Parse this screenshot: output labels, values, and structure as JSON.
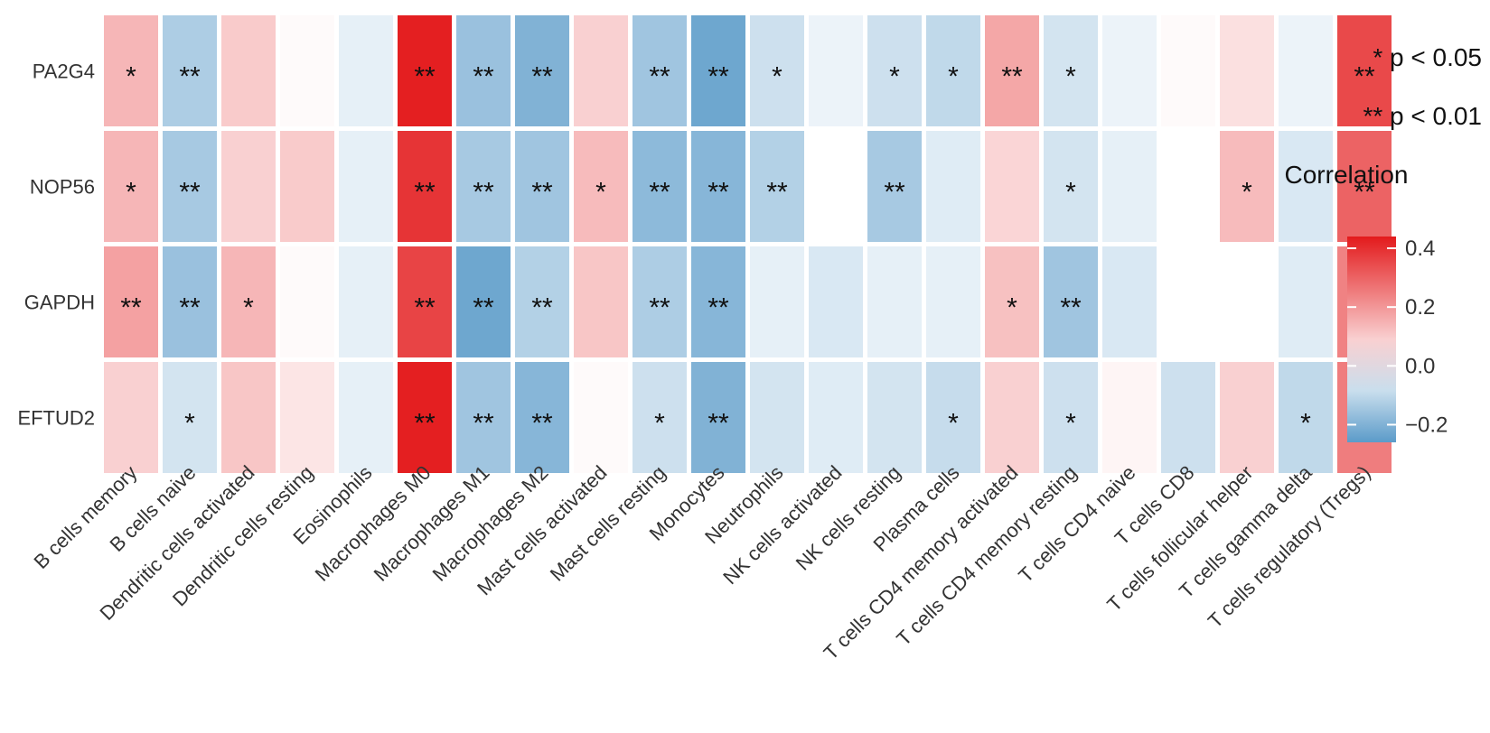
{
  "chart_data": {
    "type": "heatmap",
    "rows": [
      "PA2G4",
      "NOP56",
      "GAPDH",
      "EFTUD2"
    ],
    "columns": [
      "B cells memory",
      "B cells naive",
      "Dendritic cells activated",
      "Dendritic cells resting",
      "Eosinophils",
      "Macrophages M0",
      "Macrophages M1",
      "Macrophages M2",
      "Mast cells activated",
      "Mast cells resting",
      "Monocytes",
      "Neutrophils",
      "NK cells activated",
      "NK cells resting",
      "Plasma cells",
      "T cells CD4 memory activated",
      "T cells CD4 memory resting",
      "T cells CD4 naive",
      "T cells CD8",
      "T cells follicular helper",
      "T cells gamma delta",
      "T cells regulatory (Tregs)"
    ],
    "values": [
      [
        0.14,
        -0.13,
        0.1,
        0.01,
        -0.04,
        0.43,
        -0.16,
        -0.2,
        0.09,
        -0.15,
        -0.23,
        -0.08,
        -0.03,
        -0.08,
        -0.1,
        0.17,
        -0.07,
        -0.03,
        0.01,
        0.06,
        -0.03,
        0.35
      ],
      [
        0.14,
        -0.14,
        0.09,
        0.1,
        -0.04,
        0.39,
        -0.14,
        -0.15,
        0.13,
        -0.18,
        -0.19,
        -0.12,
        0.0,
        -0.14,
        -0.05,
        0.08,
        -0.07,
        -0.04,
        0.0,
        0.13,
        -0.06,
        0.3
      ],
      [
        0.18,
        -0.16,
        0.14,
        0.01,
        -0.04,
        0.36,
        -0.23,
        -0.12,
        0.11,
        -0.13,
        -0.19,
        -0.04,
        -0.06,
        -0.04,
        -0.04,
        0.12,
        -0.15,
        -0.06,
        0.0,
        0.0,
        -0.05,
        0.24
      ],
      [
        0.09,
        -0.07,
        0.11,
        0.05,
        -0.04,
        0.43,
        -0.15,
        -0.19,
        0.01,
        -0.08,
        -0.2,
        -0.07,
        -0.05,
        -0.07,
        -0.09,
        0.09,
        -0.08,
        0.02,
        -0.08,
        0.09,
        -0.1,
        0.25
      ]
    ],
    "significance": [
      [
        "*",
        "**",
        "",
        "",
        "",
        "**",
        "**",
        "**",
        "",
        "**",
        "**",
        "*",
        "",
        "*",
        "*",
        "**",
        "*",
        "",
        "",
        "",
        "",
        "**"
      ],
      [
        "*",
        "**",
        "",
        "",
        "",
        "**",
        "**",
        "**",
        "*",
        "**",
        "**",
        "**",
        "",
        "**",
        "",
        "",
        "*",
        "",
        "",
        "*",
        "",
        "**"
      ],
      [
        "**",
        "**",
        "*",
        "",
        "",
        "**",
        "**",
        "**",
        "",
        "**",
        "**",
        "",
        "",
        "",
        "",
        "*",
        "**",
        "",
        "",
        "",
        "",
        "**"
      ],
      [
        "",
        "*",
        "",
        "",
        "",
        "**",
        "**",
        "**",
        "",
        "*",
        "**",
        "",
        "",
        "",
        "*",
        "",
        "*",
        "",
        "",
        "",
        "*",
        "**"
      ]
    ],
    "significance_legend": [
      "* p < 0.05",
      "** p < 0.01"
    ],
    "color_scale": {
      "title": "Correlation",
      "range": [
        -0.26,
        0.44
      ],
      "ticks": [
        0.4,
        0.2,
        0.0,
        -0.2
      ],
      "tick_labels": [
        "0.4",
        "0.2",
        "0.0",
        "−0.2"
      ],
      "low_color": "#5b9bc9",
      "mid_color": "#ffffff",
      "high_color": "#e31a1c"
    },
    "grid": false,
    "legend_position": "right"
  }
}
